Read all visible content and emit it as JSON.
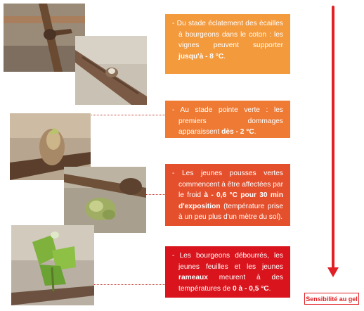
{
  "stages": [
    {
      "parts": [
        {
          "t": "- Du stade éclatement des écailles à bourgeons dans le coton : les vignes peuvent supporter ",
          "b": false
        },
        {
          "t": "jusqu'à - 8 °C",
          "b": true
        },
        {
          "t": ".",
          "b": false
        }
      ],
      "color": "#f39a3d"
    },
    {
      "parts": [
        {
          "t": "- Au stade pointe verte : les premiers dommages apparaissent ",
          "b": false
        },
        {
          "t": "dès - 2 °C",
          "b": true
        },
        {
          "t": ".",
          "b": false
        }
      ],
      "color": "#ee7a33"
    },
    {
      "parts": [
        {
          "t": "- Les jeunes pousses vertes commencent à être affectées par le froid ",
          "b": false
        },
        {
          "t": "à - 0,6 °C pour 30 min d'exposition",
          "b": true
        },
        {
          "t": " (température prise à un peu plus d'un mètre du sol).",
          "b": false
        }
      ],
      "color": "#e5502c"
    },
    {
      "parts": [
        {
          "t": "- Les bourgeons débourrés, les jeunes feuilles et les jeunes ",
          "b": false
        },
        {
          "t": "rameaux",
          "b": true
        },
        {
          "t": " meurent à des températures de ",
          "b": false
        },
        {
          "t": "0 à - 0,5 °C",
          "b": true
        },
        {
          "t": ".",
          "b": false
        }
      ],
      "color": "#d9141c"
    }
  ],
  "legend": "Sensibilité au gel",
  "accent_color": "#e02024"
}
